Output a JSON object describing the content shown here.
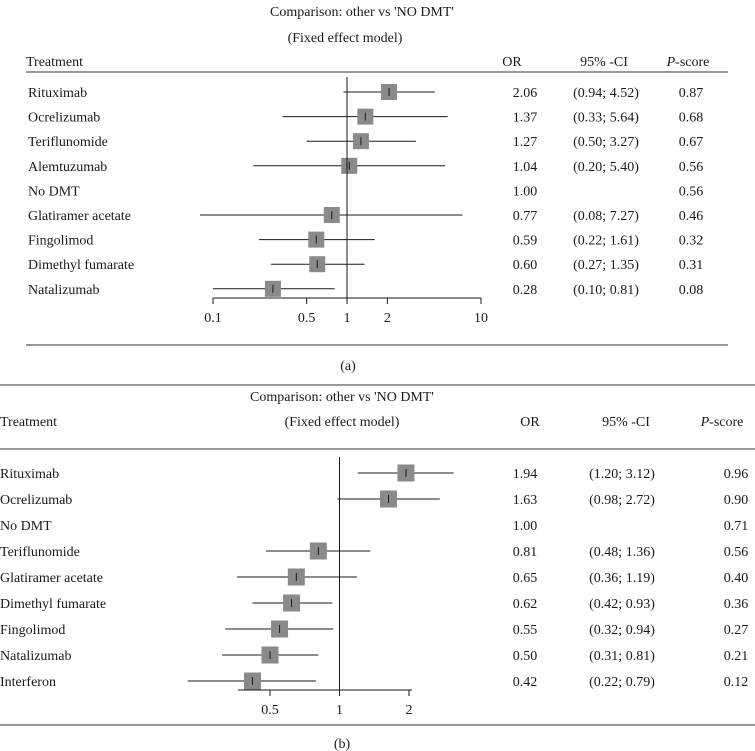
{
  "chart_data": [
    {
      "type": "forest",
      "panel_label": "(a)",
      "title": "Comparison: other vs 'NO DMT'",
      "subtitle": "(Fixed effect model)",
      "column_headers": {
        "treatment": "Treatment",
        "or": "OR",
        "ci": "95% -CI",
        "pscore_prefix": "P",
        "pscore_suffix": "-score"
      },
      "x_scale": "log",
      "xlim": [
        0.1,
        10
      ],
      "reference_value": 1,
      "x_ticks": [
        0.1,
        0.5,
        1,
        2,
        10
      ],
      "x_tick_labels": [
        "0.1",
        "0.5",
        "1",
        "2",
        "10"
      ],
      "rows": [
        {
          "treatment": "Rituximab",
          "or": 2.06,
          "lower": 0.94,
          "upper": 4.52,
          "or_text": "2.06",
          "ci_text": "(0.94; 4.52)",
          "pscore_text": "0.87"
        },
        {
          "treatment": "Ocrelizumab",
          "or": 1.37,
          "lower": 0.33,
          "upper": 5.64,
          "or_text": "1.37",
          "ci_text": "(0.33; 5.64)",
          "pscore_text": "0.68"
        },
        {
          "treatment": "Teriflunomide",
          "or": 1.27,
          "lower": 0.5,
          "upper": 3.27,
          "or_text": "1.27",
          "ci_text": "(0.50; 3.27)",
          "pscore_text": "0.67"
        },
        {
          "treatment": "Alemtuzumab",
          "or": 1.04,
          "lower": 0.2,
          "upper": 5.4,
          "or_text": "1.04",
          "ci_text": "(0.20; 5.40)",
          "pscore_text": "0.56"
        },
        {
          "treatment": "No DMT",
          "or": 1.0,
          "lower": null,
          "upper": null,
          "or_text": "1.00",
          "ci_text": "",
          "pscore_text": "0.56"
        },
        {
          "treatment": "Glatiramer acetate",
          "or": 0.77,
          "lower": 0.08,
          "upper": 7.27,
          "or_text": "0.77",
          "ci_text": "(0.08; 7.27)",
          "pscore_text": "0.46"
        },
        {
          "treatment": "Fingolimod",
          "or": 0.59,
          "lower": 0.22,
          "upper": 1.61,
          "or_text": "0.59",
          "ci_text": "(0.22; 1.61)",
          "pscore_text": "0.32"
        },
        {
          "treatment": "Dimethyl fumarate",
          "or": 0.6,
          "lower": 0.27,
          "upper": 1.35,
          "or_text": "0.60",
          "ci_text": "(0.27; 1.35)",
          "pscore_text": "0.31"
        },
        {
          "treatment": "Natalizumab",
          "or": 0.28,
          "lower": 0.1,
          "upper": 0.81,
          "or_text": "0.28",
          "ci_text": "(0.10; 0.81)",
          "pscore_text": "0.08"
        }
      ]
    },
    {
      "type": "forest",
      "panel_label": "(b)",
      "title": "Comparison: other vs 'NO DMT'",
      "subtitle": "(Fixed effect model)",
      "column_headers": {
        "treatment": "Treatment",
        "or": "OR",
        "ci": "95% -CI",
        "pscore_prefix": "P",
        "pscore_suffix": "-score"
      },
      "x_scale": "log",
      "xlim": [
        0.3,
        2.5
      ],
      "reference_value": 1,
      "x_ticks": [
        0.5,
        1,
        2
      ],
      "x_tick_labels": [
        "0.5",
        "1",
        "2"
      ],
      "rows": [
        {
          "treatment": "Rituximab",
          "or": 1.94,
          "lower": 1.2,
          "upper": 3.12,
          "or_text": "1.94",
          "ci_text": "(1.20; 3.12)",
          "pscore_text": "0.96"
        },
        {
          "treatment": "Ocrelizumab",
          "or": 1.63,
          "lower": 0.98,
          "upper": 2.72,
          "or_text": "1.63",
          "ci_text": "(0.98; 2.72)",
          "pscore_text": "0.90"
        },
        {
          "treatment": "No DMT",
          "or": 1.0,
          "lower": null,
          "upper": null,
          "or_text": "1.00",
          "ci_text": "",
          "pscore_text": "0.71"
        },
        {
          "treatment": "Teriflunomide",
          "or": 0.81,
          "lower": 0.48,
          "upper": 1.36,
          "or_text": "0.81",
          "ci_text": "(0.48; 1.36)",
          "pscore_text": "0.56"
        },
        {
          "treatment": "Glatiramer acetate",
          "or": 0.65,
          "lower": 0.36,
          "upper": 1.19,
          "or_text": "0.65",
          "ci_text": "(0.36; 1.19)",
          "pscore_text": "0.40"
        },
        {
          "treatment": "Dimethyl fumarate",
          "or": 0.62,
          "lower": 0.42,
          "upper": 0.93,
          "or_text": "0.62",
          "ci_text": "(0.42; 0.93)",
          "pscore_text": "0.36"
        },
        {
          "treatment": "Fingolimod",
          "or": 0.55,
          "lower": 0.32,
          "upper": 0.94,
          "or_text": "0.55",
          "ci_text": "(0.32; 0.94)",
          "pscore_text": "0.27"
        },
        {
          "treatment": "Natalizumab",
          "or": 0.5,
          "lower": 0.31,
          "upper": 0.81,
          "or_text": "0.50",
          "ci_text": "(0.31; 0.81)",
          "pscore_text": "0.21"
        },
        {
          "treatment": "Interferon",
          "or": 0.42,
          "lower": 0.22,
          "upper": 0.79,
          "or_text": "0.42",
          "ci_text": "(0.22; 0.79)",
          "pscore_text": "0.12"
        }
      ]
    }
  ],
  "colors": {
    "square": "#8a8a8a",
    "line": "#1a1a1a",
    "text": "#1a1a1a",
    "rule": "#333333"
  }
}
